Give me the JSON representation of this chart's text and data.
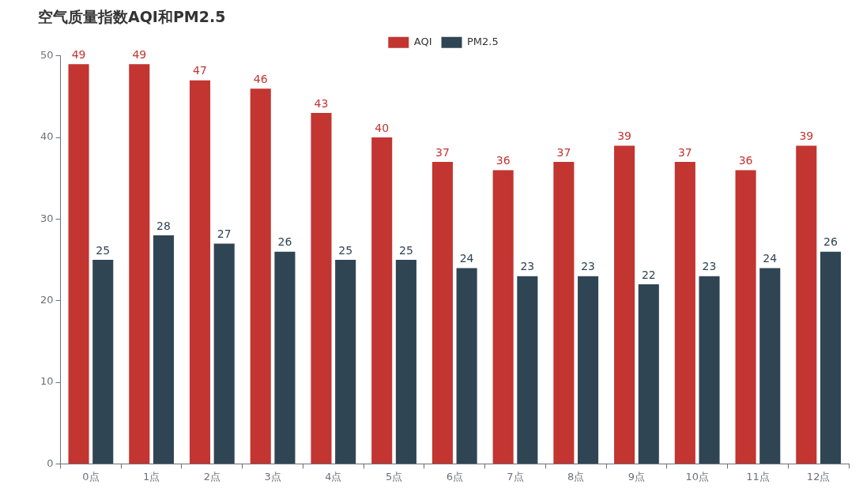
{
  "chart_data": {
    "type": "bar",
    "title": "空气质量指数AQI和PM2.5",
    "categories": [
      "0点",
      "1点",
      "2点",
      "3点",
      "4点",
      "5点",
      "6点",
      "7点",
      "8点",
      "9点",
      "10点",
      "11点",
      "12点"
    ],
    "series": [
      {
        "name": "AQI",
        "color": "#c23531",
        "values": [
          49,
          49,
          47,
          46,
          43,
          40,
          37,
          36,
          37,
          39,
          37,
          36,
          39
        ]
      },
      {
        "name": "PM2.5",
        "color": "#2f4554",
        "values": [
          25,
          28,
          27,
          26,
          25,
          25,
          24,
          23,
          23,
          22,
          23,
          24,
          26
        ]
      }
    ],
    "ylim": [
      0,
      50
    ],
    "yticks": [
      0,
      10,
      20,
      30,
      40,
      50
    ],
    "grid": false,
    "legend": "top",
    "data_labels": true
  }
}
